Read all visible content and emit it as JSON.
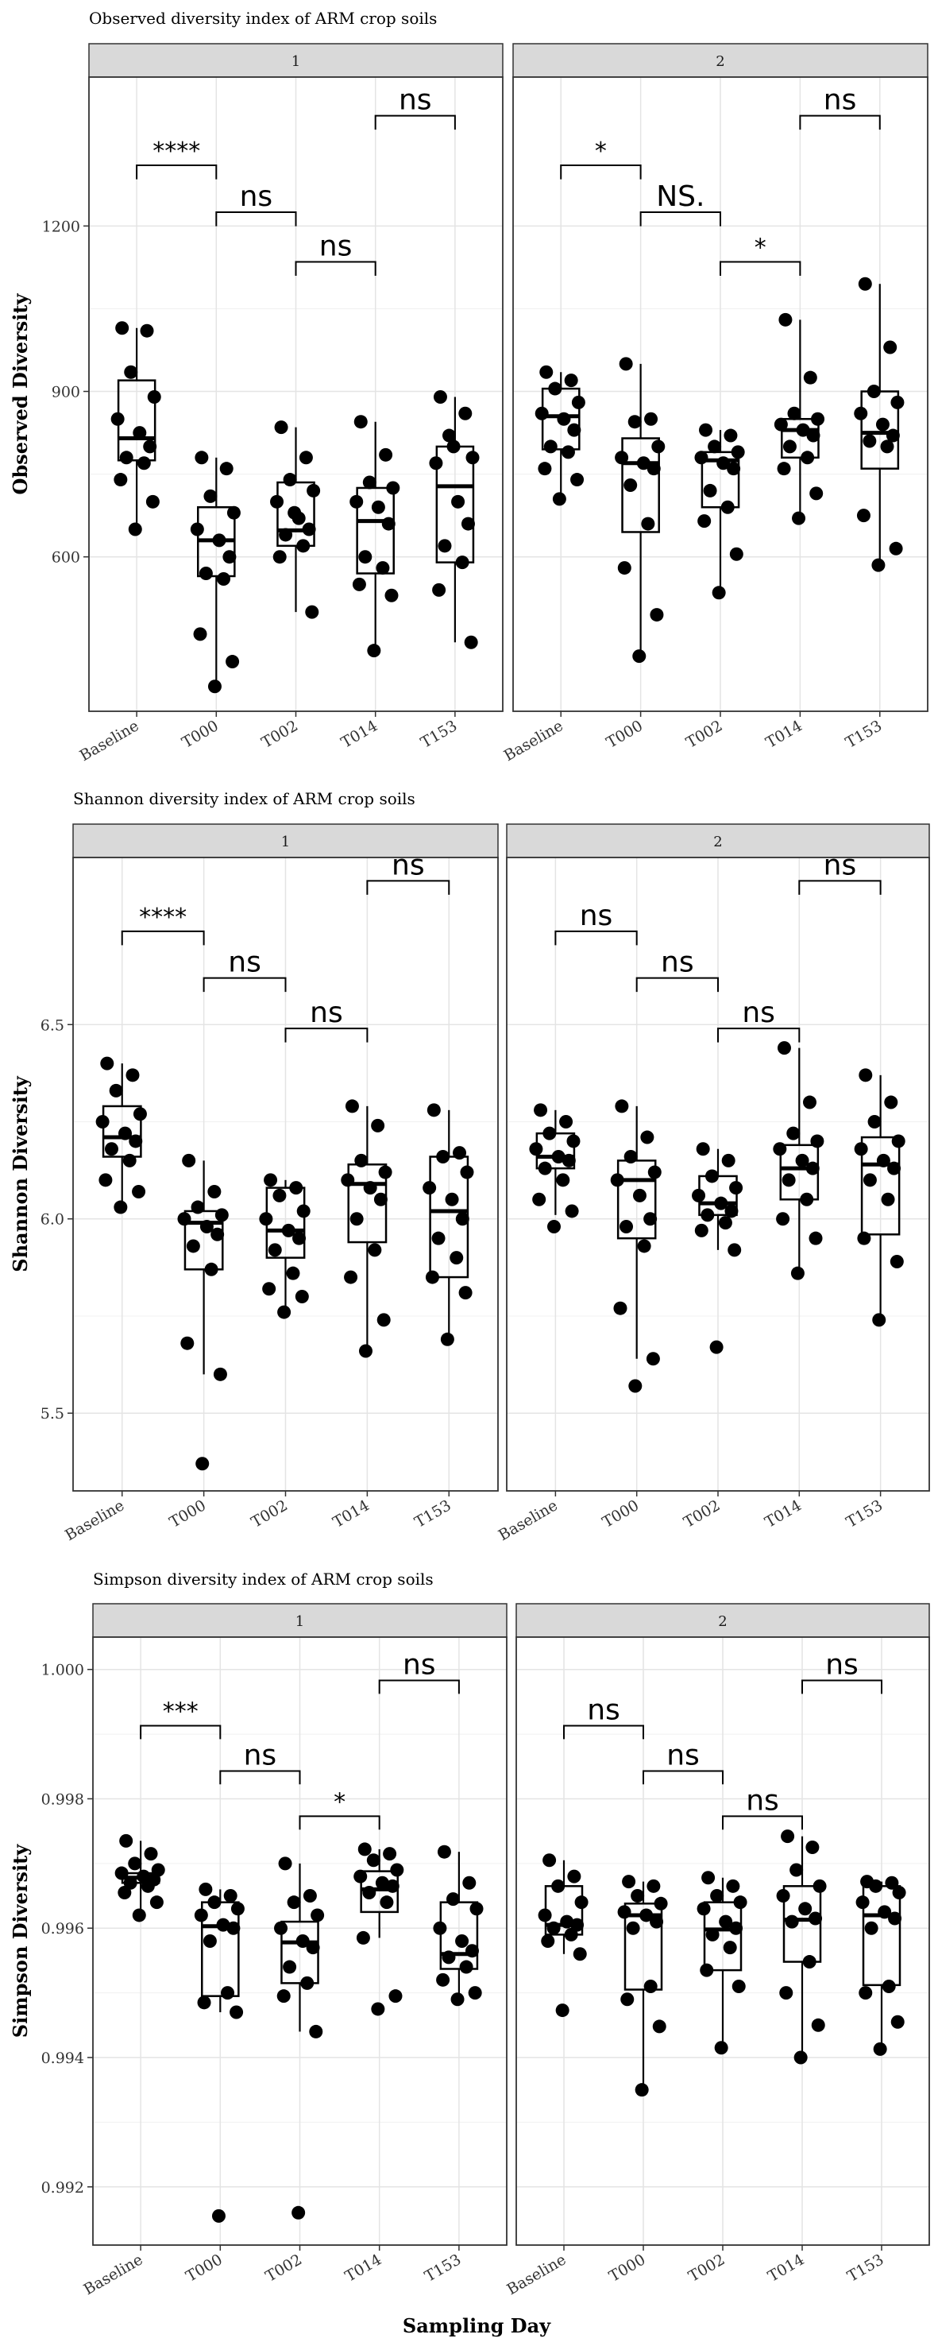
{
  "figure": {
    "xlabel": "Sampling Day",
    "categories": [
      "Baseline",
      "T000",
      "T002",
      "T014",
      "T153"
    ],
    "facets": [
      "1",
      "2"
    ]
  },
  "chart_data": [
    {
      "type": "boxplot",
      "title": "Observed diversity index of ARM crop soils",
      "ylabel": "Observed Diversity",
      "xlabel": "Sampling Day",
      "categories": [
        "Baseline",
        "T000",
        "T002",
        "T014",
        "T153"
      ],
      "ylim": [
        320,
        1470
      ],
      "yticks": [
        600,
        900,
        1200
      ],
      "ytick_labels": [
        "600",
        "900",
        "1200"
      ],
      "grid": true,
      "panels": [
        {
          "facet": "1",
          "boxes": [
            {
              "q1": 775,
              "median": 815,
              "q3": 920,
              "wlo": 650,
              "whi": 1015
            },
            {
              "q1": 565,
              "median": 630,
              "q3": 690,
              "wlo": 365,
              "whi": 780
            },
            {
              "q1": 620,
              "median": 648,
              "q3": 735,
              "wlo": 500,
              "whi": 835
            },
            {
              "q1": 570,
              "median": 665,
              "q3": 725,
              "wlo": 430,
              "whi": 845
            },
            {
              "q1": 590,
              "median": 728,
              "q3": 800,
              "wlo": 445,
              "whi": 890
            }
          ],
          "points": [
            [
              1015,
              1010,
              935,
              890,
              850,
              825,
              800,
              780,
              770,
              740,
              700,
              650
            ],
            [
              780,
              760,
              710,
              680,
              650,
              630,
              600,
              570,
              560,
              460,
              410,
              365
            ],
            [
              835,
              780,
              740,
              720,
              700,
              670,
              650,
              640,
              620,
              600,
              500,
              680
            ],
            [
              845,
              785,
              735,
              725,
              700,
              690,
              660,
              600,
              580,
              550,
              530,
              430
            ],
            [
              890,
              860,
              820,
              780,
              770,
              700,
              660,
              620,
              590,
              540,
              445,
              800
            ]
          ],
          "brackets": [
            {
              "from": 0,
              "to": 1,
              "y": 1310,
              "label": "****"
            },
            {
              "from": 1,
              "to": 2,
              "y": 1225,
              "label": "ns"
            },
            {
              "from": 2,
              "to": 3,
              "y": 1135,
              "label": "ns"
            },
            {
              "from": 3,
              "to": 4,
              "y": 1400,
              "label": "ns"
            }
          ]
        },
        {
          "facet": "2",
          "boxes": [
            {
              "q1": 795,
              "median": 855,
              "q3": 905,
              "wlo": 705,
              "whi": 935
            },
            {
              "q1": 645,
              "median": 770,
              "q3": 815,
              "wlo": 420,
              "whi": 950
            },
            {
              "q1": 690,
              "median": 775,
              "q3": 790,
              "wlo": 535,
              "whi": 830
            },
            {
              "q1": 780,
              "median": 830,
              "q3": 850,
              "wlo": 670,
              "whi": 1030
            },
            {
              "q1": 760,
              "median": 825,
              "q3": 900,
              "wlo": 585,
              "whi": 1095
            }
          ],
          "points": [
            [
              935,
              920,
              905,
              880,
              860,
              850,
              830,
              800,
              790,
              760,
              740,
              705
            ],
            [
              950,
              850,
              845,
              800,
              780,
              770,
              760,
              730,
              660,
              580,
              495,
              420
            ],
            [
              830,
              820,
              800,
              790,
              780,
              770,
              760,
              720,
              690,
              665,
              605,
              535
            ],
            [
              1030,
              925,
              860,
              850,
              840,
              830,
              820,
              800,
              780,
              760,
              715,
              670
            ],
            [
              1095,
              980,
              900,
              880,
              860,
              840,
              820,
              810,
              800,
              675,
              615,
              585
            ]
          ],
          "brackets": [
            {
              "from": 0,
              "to": 1,
              "y": 1310,
              "label": "*"
            },
            {
              "from": 1,
              "to": 2,
              "y": 1225,
              "label": "NS."
            },
            {
              "from": 2,
              "to": 3,
              "y": 1135,
              "label": "*"
            },
            {
              "from": 3,
              "to": 4,
              "y": 1400,
              "label": "ns"
            }
          ]
        }
      ]
    },
    {
      "type": "boxplot",
      "title": "Shannon diversity index of ARM crop soils",
      "ylabel": "Shannon Diversity",
      "xlabel": "Sampling Day",
      "categories": [
        "Baseline",
        "T000",
        "T002",
        "T014",
        "T153"
      ],
      "ylim": [
        5.3,
        6.93
      ],
      "yticks": [
        5.5,
        6.0,
        6.5
      ],
      "ytick_labels": [
        "5.5",
        "6.0",
        "6.5"
      ],
      "grid": true,
      "panels": [
        {
          "facet": "1",
          "boxes": [
            {
              "q1": 6.16,
              "median": 6.21,
              "q3": 6.29,
              "wlo": 6.03,
              "whi": 6.4
            },
            {
              "q1": 5.87,
              "median": 5.99,
              "q3": 6.02,
              "wlo": 5.6,
              "whi": 6.15
            },
            {
              "q1": 5.9,
              "median": 5.97,
              "q3": 6.08,
              "wlo": 5.76,
              "whi": 6.1
            },
            {
              "q1": 5.94,
              "median": 6.09,
              "q3": 6.14,
              "wlo": 5.66,
              "whi": 6.29
            },
            {
              "q1": 5.85,
              "median": 6.02,
              "q3": 6.16,
              "wlo": 5.69,
              "whi": 6.28
            }
          ],
          "points": [
            [
              6.4,
              6.37,
              6.33,
              6.27,
              6.25,
              6.22,
              6.2,
              6.18,
              6.15,
              6.1,
              6.07,
              6.03
            ],
            [
              6.15,
              6.07,
              6.03,
              6.01,
              6.0,
              5.98,
              5.96,
              5.93,
              5.87,
              5.68,
              5.6,
              5.37
            ],
            [
              6.1,
              6.08,
              6.06,
              6.02,
              6.0,
              5.97,
              5.95,
              5.92,
              5.86,
              5.82,
              5.8,
              5.76
            ],
            [
              6.29,
              6.24,
              6.15,
              6.12,
              6.1,
              6.08,
              6.05,
              6.0,
              5.92,
              5.85,
              5.74,
              5.66
            ],
            [
              6.28,
              6.17,
              6.16,
              6.12,
              6.08,
              6.05,
              6.0,
              5.95,
              5.9,
              5.85,
              5.81,
              5.69
            ]
          ],
          "brackets": [
            {
              "from": 0,
              "to": 1,
              "y": 6.74,
              "label": "****"
            },
            {
              "from": 1,
              "to": 2,
              "y": 6.62,
              "label": "ns"
            },
            {
              "from": 2,
              "to": 3,
              "y": 6.49,
              "label": "ns"
            },
            {
              "from": 3,
              "to": 4,
              "y": 6.87,
              "label": "ns"
            }
          ]
        },
        {
          "facet": "2",
          "boxes": [
            {
              "q1": 6.13,
              "median": 6.16,
              "q3": 6.22,
              "wlo": 6.01,
              "whi": 6.28
            },
            {
              "q1": 5.95,
              "median": 6.1,
              "q3": 6.15,
              "wlo": 5.64,
              "whi": 6.29
            },
            {
              "q1": 6.01,
              "median": 6.04,
              "q3": 6.11,
              "wlo": 5.92,
              "whi": 6.18
            },
            {
              "q1": 6.05,
              "median": 6.13,
              "q3": 6.19,
              "wlo": 5.86,
              "whi": 6.44
            },
            {
              "q1": 5.96,
              "median": 6.14,
              "q3": 6.21,
              "wlo": 5.74,
              "whi": 6.37
            }
          ],
          "points": [
            [
              6.28,
              6.25,
              6.22,
              6.2,
              6.18,
              6.16,
              6.15,
              6.13,
              6.1,
              6.05,
              6.02,
              5.98
            ],
            [
              6.29,
              6.21,
              6.16,
              6.12,
              6.1,
              6.06,
              6.0,
              5.98,
              5.93,
              5.77,
              5.64,
              5.57
            ],
            [
              6.18,
              6.15,
              6.11,
              6.08,
              6.06,
              6.04,
              6.02,
              6.01,
              5.99,
              5.97,
              5.92,
              5.67
            ],
            [
              6.44,
              6.3,
              6.22,
              6.2,
              6.18,
              6.15,
              6.13,
              6.1,
              6.05,
              6.0,
              5.95,
              5.86
            ],
            [
              6.37,
              6.3,
              6.25,
              6.2,
              6.18,
              6.15,
              6.13,
              6.1,
              6.05,
              5.95,
              5.89,
              5.74
            ]
          ],
          "brackets": [
            {
              "from": 0,
              "to": 1,
              "y": 6.74,
              "label": "ns"
            },
            {
              "from": 1,
              "to": 2,
              "y": 6.62,
              "label": "ns"
            },
            {
              "from": 2,
              "to": 3,
              "y": 6.49,
              "label": "ns"
            },
            {
              "from": 3,
              "to": 4,
              "y": 6.87,
              "label": "ns"
            }
          ]
        }
      ]
    },
    {
      "type": "boxplot",
      "title": "Simpson diversity index of ARM crop soils",
      "ylabel": "Simpson Diversity",
      "xlabel": "Sampling Day",
      "categories": [
        "Baseline",
        "T000",
        "T002",
        "T014",
        "T153"
      ],
      "ylim": [
        0.9911,
        1.0005
      ],
      "yticks": [
        0.992,
        0.994,
        0.996,
        0.998,
        1.0
      ],
      "ytick_labels": [
        "0.992",
        "0.994",
        "0.996",
        "0.998",
        "1.000"
      ],
      "grid": true,
      "panels": [
        {
          "facet": "1",
          "boxes": [
            {
              "q1": 0.9967,
              "median": 0.99678,
              "q3": 0.99685,
              "wlo": 0.9962,
              "whi": 0.99735
            },
            {
              "q1": 0.99495,
              "median": 0.99603,
              "q3": 0.9964,
              "wlo": 0.9947,
              "whi": 0.9966
            },
            {
              "q1": 0.99515,
              "median": 0.99578,
              "q3": 0.9961,
              "wlo": 0.9944,
              "whi": 0.997
            },
            {
              "q1": 0.99625,
              "median": 0.9966,
              "q3": 0.99688,
              "wlo": 0.99585,
              "whi": 0.99722
            },
            {
              "q1": 0.99537,
              "median": 0.9956,
              "q3": 0.9964,
              "wlo": 0.9949,
              "whi": 0.99718
            }
          ],
          "points": [
            [
              0.99735,
              0.99715,
              0.997,
              0.9969,
              0.99685,
              0.9968,
              0.99675,
              0.9967,
              0.99665,
              0.99655,
              0.9964,
              0.9962
            ],
            [
              0.9966,
              0.9965,
              0.9964,
              0.9963,
              0.9962,
              0.99605,
              0.996,
              0.9958,
              0.995,
              0.99485,
              0.9947,
              0.99155
            ],
            [
              0.997,
              0.9965,
              0.9964,
              0.9962,
              0.996,
              0.9958,
              0.9957,
              0.9954,
              0.99515,
              0.99495,
              0.9944,
              0.9916
            ],
            [
              0.99722,
              0.99715,
              0.99705,
              0.9969,
              0.9968,
              0.9967,
              0.99665,
              0.99655,
              0.9964,
              0.99585,
              0.99495,
              0.99475
            ],
            [
              0.99718,
              0.9967,
              0.99645,
              0.9963,
              0.996,
              0.9958,
              0.99565,
              0.99555,
              0.9954,
              0.9952,
              0.995,
              0.9949
            ]
          ],
          "brackets": [
            {
              "from": 0,
              "to": 1,
              "y": 0.99913,
              "label": "***"
            },
            {
              "from": 1,
              "to": 2,
              "y": 0.99843,
              "label": "ns"
            },
            {
              "from": 2,
              "to": 3,
              "y": 0.99773,
              "label": "*"
            },
            {
              "from": 3,
              "to": 4,
              "y": 0.99983,
              "label": "ns"
            }
          ]
        },
        {
          "facet": "2",
          "boxes": [
            {
              "q1": 0.9959,
              "median": 0.99605,
              "q3": 0.99665,
              "wlo": 0.9956,
              "whi": 0.99705
            },
            {
              "q1": 0.99505,
              "median": 0.9962,
              "q3": 0.99638,
              "wlo": 0.9935,
              "whi": 0.99672
            },
            {
              "q1": 0.99535,
              "median": 0.99598,
              "q3": 0.9964,
              "wlo": 0.99415,
              "whi": 0.99678
            },
            {
              "q1": 0.99548,
              "median": 0.99613,
              "q3": 0.99665,
              "wlo": 0.994,
              "whi": 0.99742
            },
            {
              "q1": 0.99512,
              "median": 0.9962,
              "q3": 0.99665,
              "wlo": 0.99413,
              "whi": 0.99672
            }
          ],
          "points": [
            [
              0.99705,
              0.9968,
              0.99665,
              0.9964,
              0.9962,
              0.9961,
              0.99605,
              0.996,
              0.9959,
              0.9958,
              0.9956,
              0.99473
            ],
            [
              0.99672,
              0.99665,
              0.9965,
              0.99638,
              0.99625,
              0.9962,
              0.9961,
              0.996,
              0.9951,
              0.9949,
              0.99448,
              0.9935
            ],
            [
              0.99678,
              0.99665,
              0.9965,
              0.9964,
              0.9963,
              0.9961,
              0.996,
              0.9959,
              0.9957,
              0.99535,
              0.9951,
              0.99415
            ],
            [
              0.99742,
              0.99725,
              0.9969,
              0.99665,
              0.9965,
              0.9963,
              0.99615,
              0.9961,
              0.99548,
              0.995,
              0.9945,
              0.994
            ],
            [
              0.99672,
              0.9967,
              0.99665,
              0.99655,
              0.9964,
              0.99625,
              0.99615,
              0.996,
              0.9951,
              0.995,
              0.99455,
              0.99413
            ]
          ],
          "brackets": [
            {
              "from": 0,
              "to": 1,
              "y": 0.99913,
              "label": "ns"
            },
            {
              "from": 1,
              "to": 2,
              "y": 0.99843,
              "label": "ns"
            },
            {
              "from": 2,
              "to": 3,
              "y": 0.99773,
              "label": "ns"
            },
            {
              "from": 3,
              "to": 4,
              "y": 0.99983,
              "label": "ns"
            }
          ]
        }
      ]
    }
  ]
}
